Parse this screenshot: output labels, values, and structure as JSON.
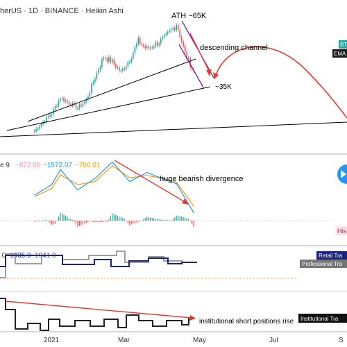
{
  "header": {
    "title": "herUS · 1D · BINANCE · Heikin Ashi"
  },
  "annotations": {
    "ath": "ATH ~65K",
    "channel": "descending channel",
    "target": "~35K",
    "divergence": "huge bearish divergence",
    "institutional": "institutional short positions rise"
  },
  "badges": {
    "bt": "BT",
    "ema": "EMA",
    "histogram": "His",
    "retail": "Retail Tra",
    "professional": "Professional Tra",
    "institutional": "Institutional Tra"
  },
  "macd_header": {
    "prefix": "e 9",
    "hist_value": "−872.05",
    "macd_value": "−1572.07",
    "signal_value": "−700.01"
  },
  "positions_header": {
    "prefix": ".0",
    "retail_value": "1905.0",
    "professional_value": "1941.0"
  },
  "colors": {
    "bull": "#26a69a",
    "bear": "#ef5350",
    "trendline": "#000000",
    "channel": "#7b1fa2",
    "projection": "#e53935",
    "macd": "#2196f3",
    "signal": "#ff9800",
    "retail": "#1a237e",
    "professional": "#9e9e9e",
    "institutional": "#212121"
  },
  "chart_data": {
    "type": "line",
    "price": {
      "x": [
        "2020-12-20",
        "2021-01-03",
        "2021-01-10",
        "2021-01-17",
        "2021-01-24",
        "2021-01-31",
        "2021-02-07",
        "2021-02-14",
        "2021-02-21",
        "2021-02-28",
        "2021-03-07",
        "2021-03-14",
        "2021-03-21",
        "2021-03-28",
        "2021-04-04",
        "2021-04-11",
        "2021-04-14",
        "2021-04-21",
        "2021-04-28"
      ],
      "y": [
        23000,
        30000,
        36000,
        34000,
        32000,
        35000,
        44000,
        52000,
        50000,
        46000,
        51000,
        58000,
        55000,
        57000,
        59000,
        63000,
        65000,
        53000,
        46000
      ],
      "ath": 65000,
      "target": 35000
    },
    "macd": {
      "x": [
        "2020-12-20",
        "2021-01-03",
        "2021-01-10",
        "2021-01-24",
        "2021-02-07",
        "2021-02-21",
        "2021-03-07",
        "2021-03-21",
        "2021-04-04",
        "2021-04-14",
        "2021-04-28"
      ],
      "macd": [
        800,
        2200,
        4200,
        1500,
        3000,
        5200,
        2600,
        3800,
        2900,
        2300,
        -1572
      ],
      "signal": [
        600,
        1700,
        3500,
        2200,
        2600,
        4700,
        3100,
        3400,
        3000,
        2500,
        -700
      ]
    },
    "x_ticks": [
      "2021",
      "Mar",
      "May",
      "Jul",
      "S"
    ]
  }
}
